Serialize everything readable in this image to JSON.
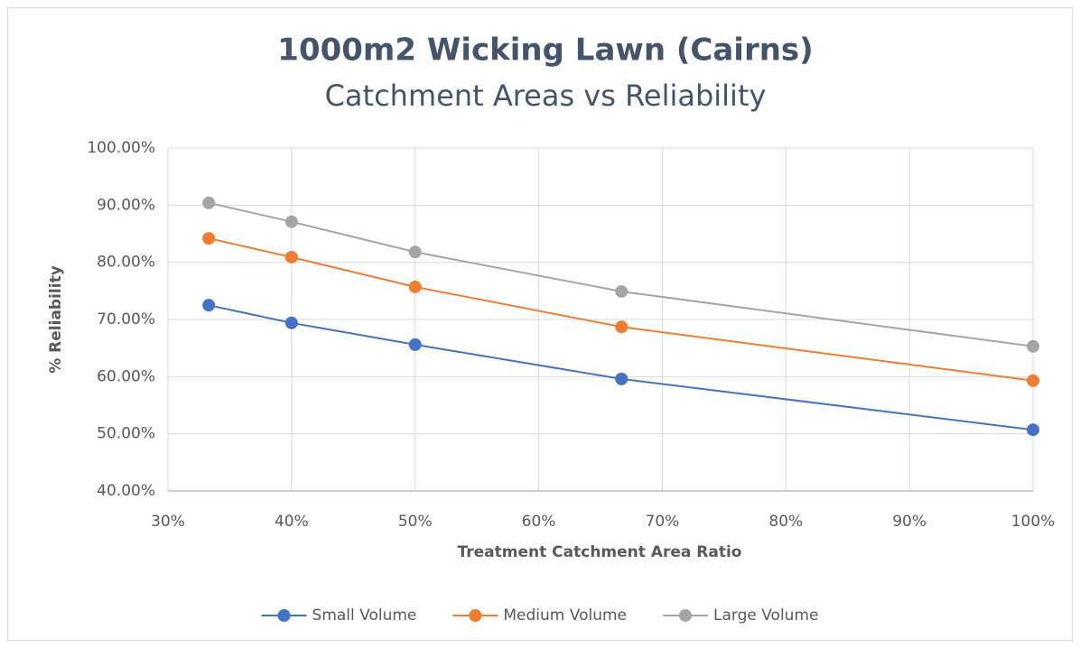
{
  "chart_data": {
    "type": "line",
    "title": "1000m2 Wicking Lawn (Cairns)",
    "subtitle": "Catchment Areas vs Reliability",
    "x_label": "Treatment Catchment Area Ratio",
    "y_label": "% Reliability",
    "x": [
      33.3,
      40,
      50,
      66.7,
      100
    ],
    "series": [
      {
        "name": "Small Volume",
        "color": "#4472c4",
        "values": [
          72.5,
          69.4,
          65.6,
          59.6,
          50.7
        ]
      },
      {
        "name": "Medium Volume",
        "color": "#ed7d31",
        "values": [
          84.2,
          80.9,
          75.7,
          68.7,
          59.3
        ]
      },
      {
        "name": "Large Volume",
        "color": "#a5a5a5",
        "values": [
          90.4,
          87.1,
          81.8,
          74.9,
          65.3
        ]
      }
    ],
    "xlim": [
      30,
      100
    ],
    "xticks": [
      {
        "value": 30,
        "label": "30%"
      },
      {
        "value": 40,
        "label": "40%"
      },
      {
        "value": 50,
        "label": "50%"
      },
      {
        "value": 60,
        "label": "60%"
      },
      {
        "value": 70,
        "label": "70%"
      },
      {
        "value": 80,
        "label": "80%"
      },
      {
        "value": 90,
        "label": "90%"
      },
      {
        "value": 100,
        "label": "100%"
      }
    ],
    "ylim": [
      40,
      100
    ],
    "yticks": [
      {
        "value": 40,
        "label": "40.00%"
      },
      {
        "value": 50,
        "label": "50.00%"
      },
      {
        "value": 60,
        "label": "60.00%"
      },
      {
        "value": 70,
        "label": "70.00%"
      },
      {
        "value": 80,
        "label": "80.00%"
      },
      {
        "value": 90,
        "label": "90.00%"
      },
      {
        "value": 100,
        "label": "100.00%"
      }
    ],
    "grid": true,
    "legend": "bottom"
  }
}
